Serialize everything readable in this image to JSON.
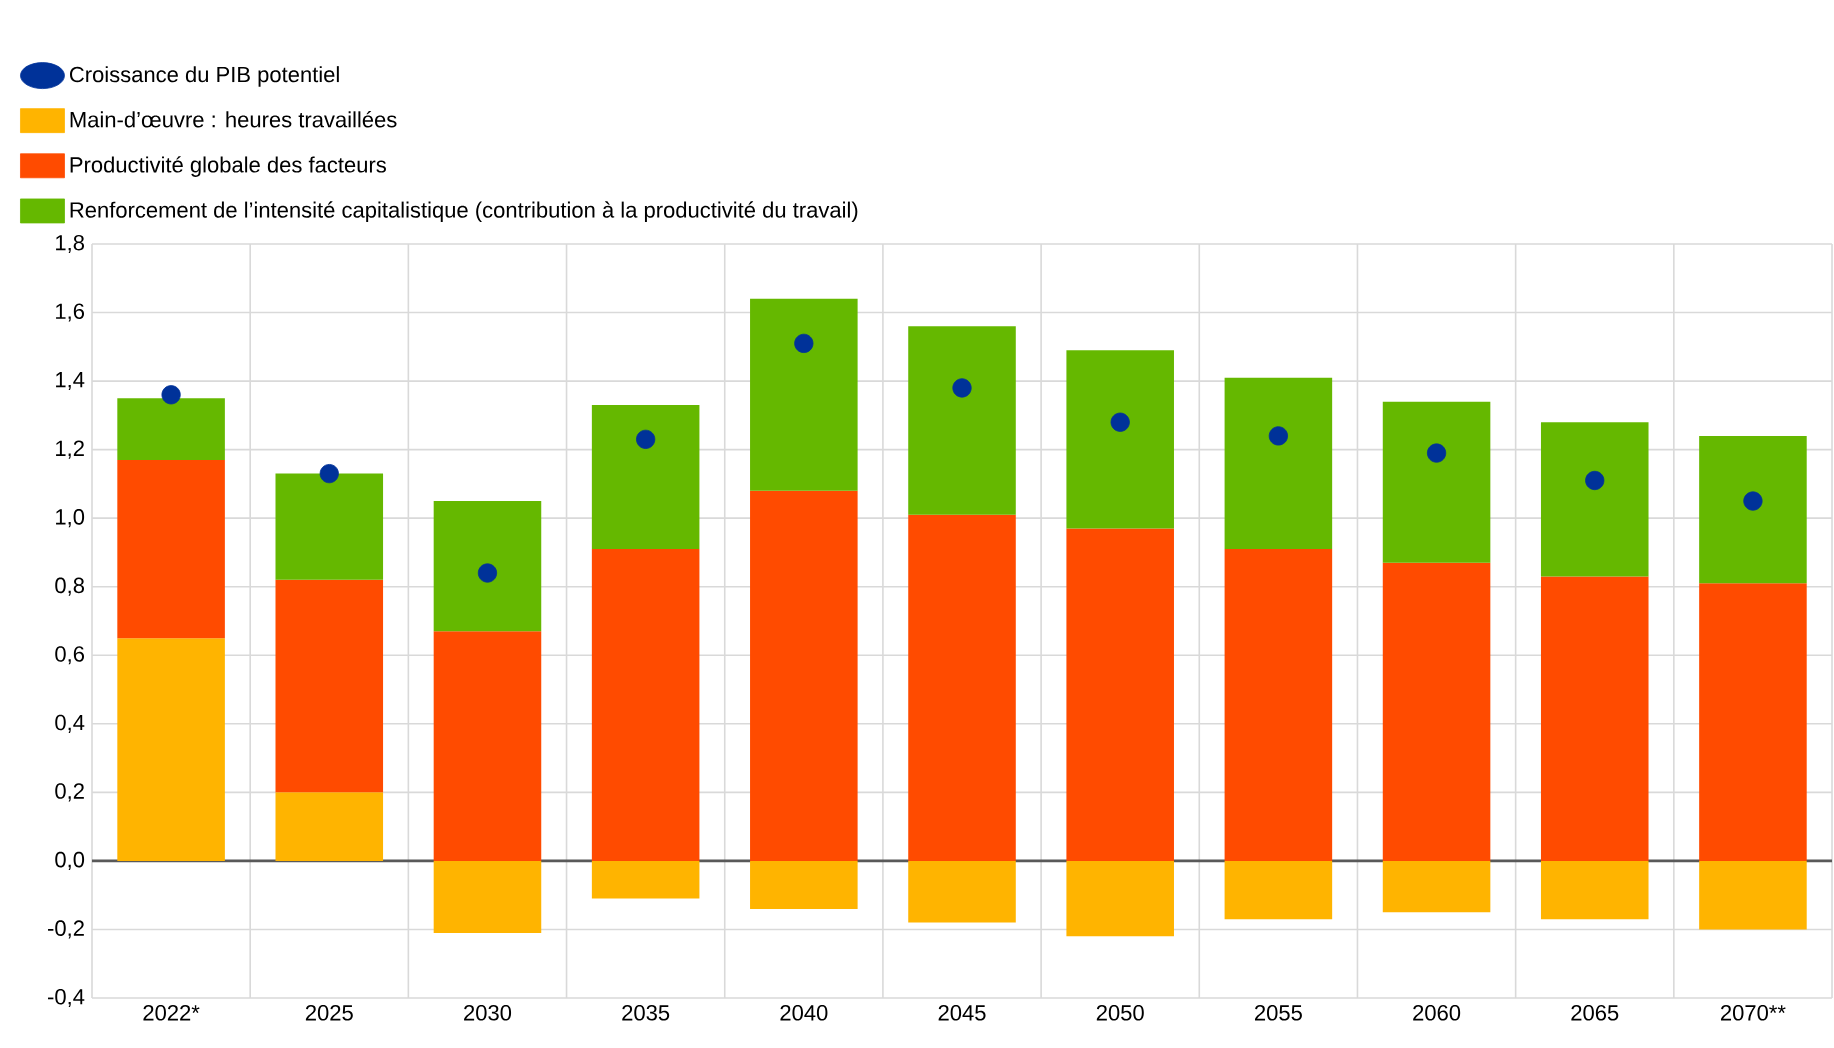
{
  "chart_data": {
    "type": "bar",
    "stacked": true,
    "categories": [
      "2022*",
      "2025",
      "2030",
      "2035",
      "2040",
      "2045",
      "2050",
      "2055",
      "2060",
      "2065",
      "2070**"
    ],
    "series": [
      {
        "name": "Croissance du PIB potentiel",
        "type": "scatter",
        "color": "#003299",
        "marker": "circle",
        "values": [
          1.36,
          1.13,
          0.84,
          1.23,
          1.51,
          1.38,
          1.28,
          1.24,
          1.19,
          1.11,
          1.05
        ]
      },
      {
        "name": "Main-d’œuvre : heures travaillées",
        "color": "#ffb400",
        "values": [
          0.65,
          0.2,
          -0.21,
          -0.11,
          -0.14,
          -0.18,
          -0.22,
          -0.17,
          -0.15,
          -0.17,
          -0.2
        ]
      },
      {
        "name": "Productivité globale des facteurs",
        "color": "#ff4b00",
        "values": [
          0.52,
          0.62,
          0.67,
          0.91,
          1.08,
          1.01,
          0.97,
          0.91,
          0.87,
          0.83,
          0.81
        ]
      },
      {
        "name": "Renforcement de l’intensité capitalistique (contribution à la productivité du travail)",
        "color": "#65b800",
        "values": [
          0.18,
          0.31,
          0.38,
          0.42,
          0.56,
          0.55,
          0.52,
          0.5,
          0.47,
          0.45,
          0.43
        ]
      }
    ],
    "ylim": [
      -0.4,
      1.8
    ],
    "yticks": [
      {
        "value": -0.4,
        "label": "-0,4"
      },
      {
        "value": -0.2,
        "label": "-0,2"
      },
      {
        "value": 0,
        "label": "0,0"
      },
      {
        "value": 0.2,
        "label": "0,2"
      },
      {
        "value": 0.4,
        "label": "0,4"
      },
      {
        "value": 0.6,
        "label": "0,6"
      },
      {
        "value": 0.8,
        "label": "0,8"
      },
      {
        "value": 1.0,
        "label": "1,0"
      },
      {
        "value": 1.2,
        "label": "1,2"
      },
      {
        "value": 1.4,
        "label": "1,4"
      },
      {
        "value": 1.6,
        "label": "1,6"
      },
      {
        "value": 1.8,
        "label": "1,8"
      }
    ],
    "grid": true,
    "legend": "top left"
  }
}
